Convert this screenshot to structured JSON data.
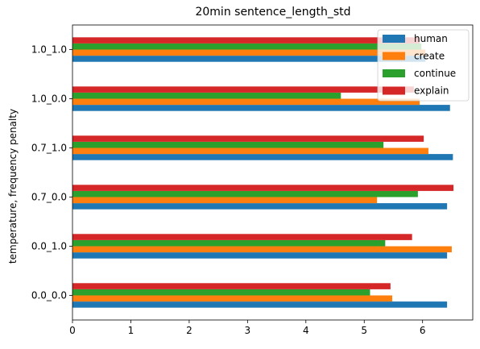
{
  "chart_data": {
    "type": "bar",
    "orientation": "horizontal",
    "title": "20min sentence_length_std",
    "xlabel": "",
    "ylabel": "temperature, frequency penalty",
    "categories": [
      "0.0_0.0",
      "0.0_1.0",
      "0.7_0.0",
      "0.7_1.0",
      "1.0_0.0",
      "1.0_1.0"
    ],
    "series": [
      {
        "name": "human",
        "color": "#1f77b4",
        "values": [
          6.42,
          6.42,
          6.42,
          6.52,
          6.47,
          6.05
        ]
      },
      {
        "name": "create",
        "color": "#ff7f0e",
        "values": [
          5.48,
          6.5,
          5.22,
          6.1,
          5.95,
          6.05
        ]
      },
      {
        "name": "continue",
        "color": "#2ca02c",
        "values": [
          5.1,
          5.36,
          5.92,
          5.33,
          4.6,
          5.98
        ]
      },
      {
        "name": "explain",
        "color": "#d62728",
        "values": [
          5.45,
          5.82,
          6.53,
          6.02,
          5.85,
          5.95
        ]
      }
    ],
    "xlim": [
      0,
      6.86
    ],
    "xticks": [
      0,
      1,
      2,
      3,
      4,
      5,
      6
    ],
    "grid": false,
    "legend_position": "top-right"
  }
}
